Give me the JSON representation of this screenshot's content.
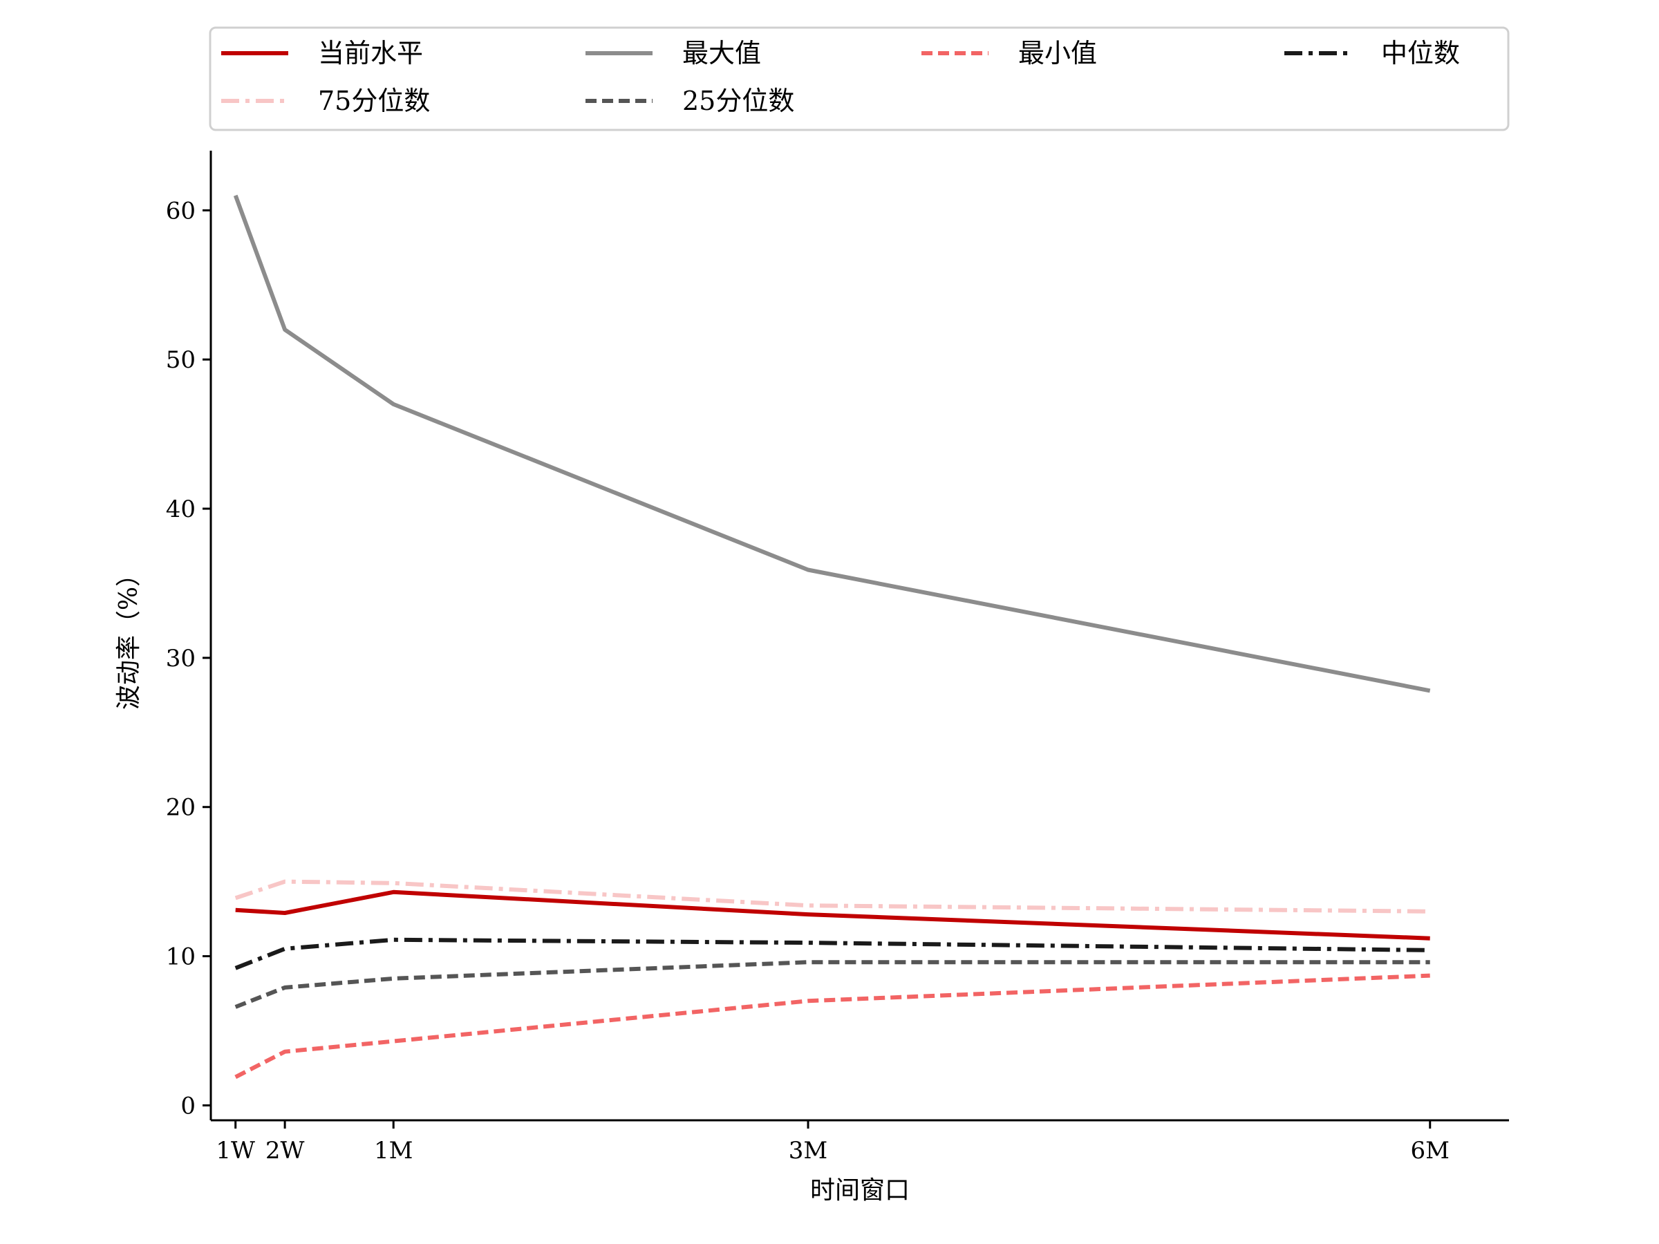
{
  "chart_data": {
    "type": "line",
    "x_categories": [
      "1W",
      "2W",
      "1M",
      "3M",
      "6M"
    ],
    "x_days": [
      5,
      10,
      21,
      63,
      126
    ],
    "xlabel": "时间窗口",
    "ylabel": "波动率（%）",
    "ylim": [
      -1,
      64
    ],
    "yticks": [
      0,
      10,
      20,
      30,
      40,
      50,
      60
    ],
    "grid": false,
    "legend": {
      "placement": "top",
      "columns": 4
    },
    "series": [
      {
        "name": "当前水平",
        "color": "#c00000",
        "style": "solid",
        "values": [
          13.1,
          12.9,
          14.3,
          12.8,
          11.2
        ]
      },
      {
        "name": "最大值",
        "color": "#8c8c8c",
        "style": "solid",
        "values": [
          61.0,
          52.0,
          47.0,
          35.9,
          27.8
        ]
      },
      {
        "name": "最小值",
        "color": "#f26464",
        "style": "dashed",
        "values": [
          1.9,
          3.6,
          4.3,
          7.0,
          8.7
        ]
      },
      {
        "name": "中位数",
        "color": "#1a1a1a",
        "style": "dashdot",
        "values": [
          9.2,
          10.5,
          11.1,
          10.9,
          10.4
        ]
      },
      {
        "name": "75分位数",
        "color": "#f8c6c6",
        "style": "dashdot",
        "values": [
          13.9,
          15.0,
          14.9,
          13.4,
          13.0
        ]
      },
      {
        "name": "25分位数",
        "color": "#555555",
        "style": "dashed",
        "values": [
          6.6,
          7.9,
          8.5,
          9.6,
          9.6
        ]
      }
    ]
  }
}
